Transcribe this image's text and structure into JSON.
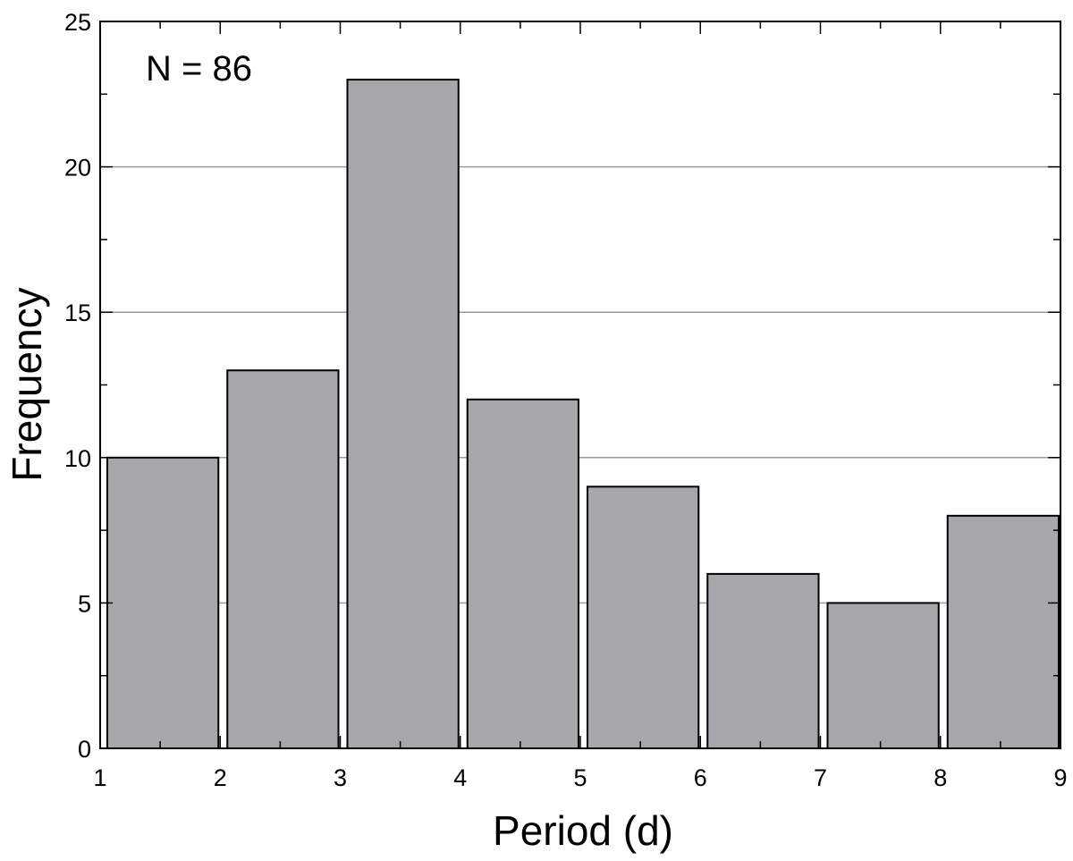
{
  "chart_data": {
    "type": "bar",
    "bins": [
      [
        1,
        2
      ],
      [
        2,
        3
      ],
      [
        3,
        4
      ],
      [
        4,
        5
      ],
      [
        5,
        6
      ],
      [
        6,
        7
      ],
      [
        7,
        8
      ],
      [
        8,
        9
      ]
    ],
    "values": [
      10,
      13,
      23,
      12,
      9,
      6,
      5,
      8
    ],
    "xlabel": "Period (d)",
    "ylabel": "Frequency",
    "xlim": [
      1,
      9
    ],
    "ylim": [
      0,
      25
    ],
    "xticks": [
      1,
      2,
      3,
      4,
      5,
      6,
      7,
      8,
      9
    ],
    "yticks": [
      0,
      5,
      10,
      15,
      20,
      25
    ],
    "grid": "horizontal",
    "annotation": "N = 86",
    "bar_color": "#a7a6aa"
  }
}
